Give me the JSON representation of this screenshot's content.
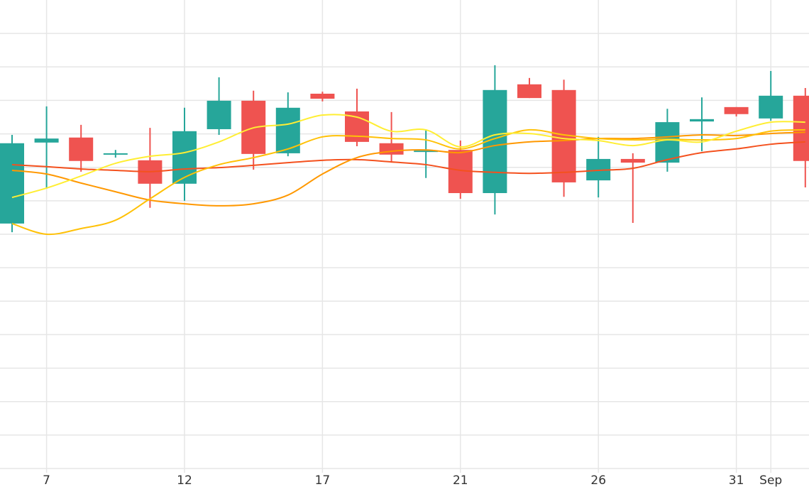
{
  "chart_data": {
    "type": "candlestick",
    "categories": [
      null,
      "7",
      null,
      null,
      null,
      "12",
      null,
      null,
      null,
      "17",
      null,
      null,
      null,
      "21",
      null,
      null,
      null,
      "26",
      null,
      null,
      null,
      "31",
      "Sep",
      null
    ],
    "open": [
      7.32,
      9.74,
      9.89,
      9.38,
      9.21,
      8.51,
      10.14,
      10.99,
      9.42,
      11.2,
      10.67,
      9.72,
      9.46,
      9.52,
      8.23,
      11.48,
      11.31,
      8.61,
      9.25,
      9.14,
      10.37,
      10.8,
      10.46,
      11.14
    ],
    "high": [
      9.97,
      10.82,
      10.27,
      9.52,
      10.18,
      10.78,
      11.69,
      11.29,
      11.24,
      11.26,
      11.35,
      10.65,
      10.1,
      9.8,
      12.05,
      11.67,
      11.62,
      9.91,
      9.42,
      10.75,
      11.09,
      10.8,
      11.88,
      11.37
    ],
    "low": [
      7.06,
      8.36,
      8.87,
      9.29,
      7.79,
      8.0,
      9.97,
      8.93,
      9.33,
      10.97,
      9.63,
      9.14,
      8.68,
      8.06,
      7.59,
      11.07,
      8.12,
      8.1,
      7.34,
      8.87,
      9.48,
      10.52,
      10.39,
      8.4
    ],
    "close": [
      9.72,
      9.86,
      9.19,
      9.42,
      8.51,
      10.08,
      10.99,
      9.4,
      10.78,
      11.05,
      9.76,
      9.38,
      9.5,
      8.23,
      11.31,
      11.07,
      8.55,
      9.25,
      9.14,
      10.35,
      10.44,
      10.59,
      11.14,
      9.19
    ],
    "up_color": "#26a69a",
    "down_color": "#ef5350",
    "lines": [
      {
        "color": "#f4511e",
        "values": [
          9.08,
          9.02,
          8.95,
          8.91,
          8.87,
          8.95,
          8.99,
          9.06,
          9.14,
          9.21,
          9.23,
          9.16,
          9.08,
          8.91,
          8.85,
          8.82,
          8.85,
          8.91,
          8.97,
          9.23,
          9.44,
          9.55,
          9.69,
          9.76
        ]
      },
      {
        "color": "#ff9800",
        "values": [
          8.91,
          8.8,
          8.53,
          8.27,
          8.02,
          7.91,
          7.85,
          7.91,
          8.17,
          8.8,
          9.29,
          9.48,
          9.52,
          9.44,
          9.65,
          9.76,
          9.8,
          9.86,
          9.86,
          9.91,
          9.97,
          9.95,
          10.01,
          10.05
        ]
      },
      {
        "color": "#ffc107",
        "values": [
          7.32,
          7.0,
          7.17,
          7.42,
          8.06,
          8.7,
          9.08,
          9.29,
          9.55,
          9.91,
          9.93,
          9.86,
          9.82,
          9.55,
          9.86,
          10.12,
          9.97,
          9.86,
          9.82,
          9.84,
          9.82,
          9.86,
          10.08,
          10.12
        ]
      },
      {
        "color": "#ffee33",
        "values": [
          8.1,
          8.38,
          8.74,
          9.12,
          9.33,
          9.44,
          9.76,
          10.18,
          10.29,
          10.56,
          10.5,
          10.08,
          10.12,
          9.61,
          9.97,
          10.01,
          9.86,
          9.8,
          9.65,
          9.82,
          9.76,
          10.08,
          10.35,
          10.35
        ]
      }
    ],
    "ylim": [
      0,
      14
    ],
    "yticks": [
      1,
      2,
      3,
      4,
      5,
      6,
      7,
      8,
      9,
      10,
      11,
      12,
      13
    ],
    "grid": true
  }
}
